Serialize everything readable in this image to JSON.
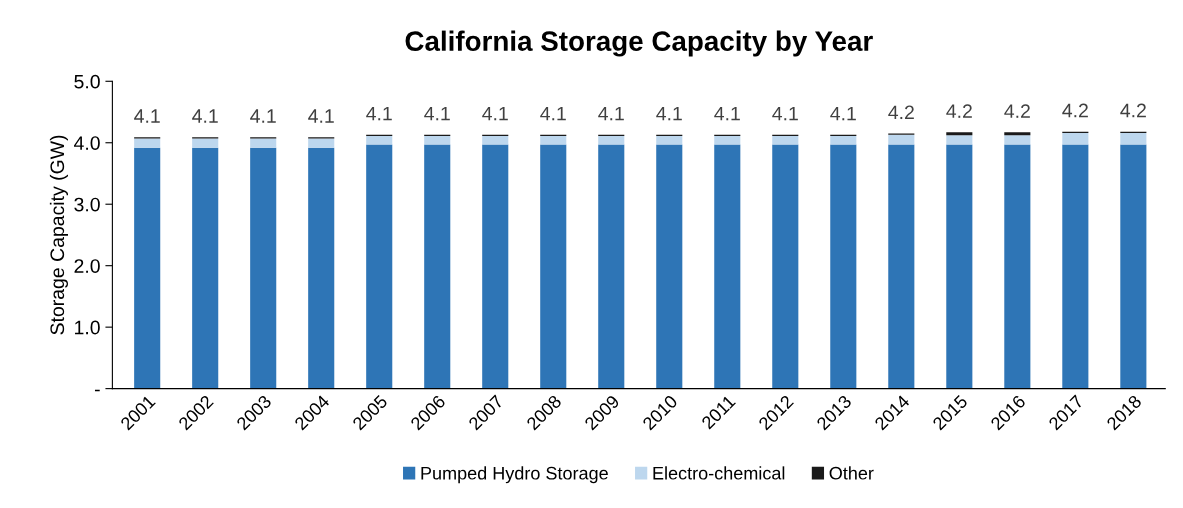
{
  "chart_data": {
    "type": "bar",
    "title": "California Storage Capacity by Year",
    "ylabel": "Storage Capacity (GW)",
    "categories": [
      "2001",
      "2002",
      "2003",
      "2004",
      "2005",
      "2006",
      "2007",
      "2008",
      "2009",
      "2010",
      "2011",
      "2012",
      "2013",
      "2014",
      "2015",
      "2016",
      "2017",
      "2018"
    ],
    "stacked": true,
    "series": [
      {
        "name": "Pumped Hydro Storage",
        "color": "#2e75b6",
        "values": [
          3.92,
          3.92,
          3.92,
          3.92,
          3.97,
          3.97,
          3.97,
          3.97,
          3.97,
          3.97,
          3.97,
          3.97,
          3.97,
          3.97,
          3.97,
          3.97,
          3.97,
          3.97
        ]
      },
      {
        "name": "Electro-chemical",
        "color": "#bdd7ee",
        "values": [
          0.15,
          0.15,
          0.15,
          0.15,
          0.14,
          0.14,
          0.14,
          0.14,
          0.14,
          0.14,
          0.14,
          0.14,
          0.14,
          0.16,
          0.15,
          0.15,
          0.19,
          0.19
        ]
      },
      {
        "name": "Other",
        "color": "#1a1a1a",
        "values": [
          0.02,
          0.02,
          0.02,
          0.02,
          0.02,
          0.02,
          0.02,
          0.02,
          0.02,
          0.02,
          0.02,
          0.02,
          0.02,
          0.02,
          0.05,
          0.05,
          0.02,
          0.02
        ]
      }
    ],
    "totals": [
      "4.1",
      "4.1",
      "4.1",
      "4.1",
      "4.1",
      "4.1",
      "4.1",
      "4.1",
      "4.1",
      "4.1",
      "4.1",
      "4.1",
      "4.1",
      "4.2",
      "4.2",
      "4.2",
      "4.2",
      "4.2"
    ],
    "ylim": [
      0,
      5.0
    ],
    "yticks": [
      {
        "value": 0,
        "label": "-"
      },
      {
        "value": 1,
        "label": "1.0"
      },
      {
        "value": 2,
        "label": "2.0"
      },
      {
        "value": 3,
        "label": "3.0"
      },
      {
        "value": 4,
        "label": "4.0"
      },
      {
        "value": 5,
        "label": "5.0"
      }
    ],
    "grid": false,
    "legend": "bottom"
  }
}
